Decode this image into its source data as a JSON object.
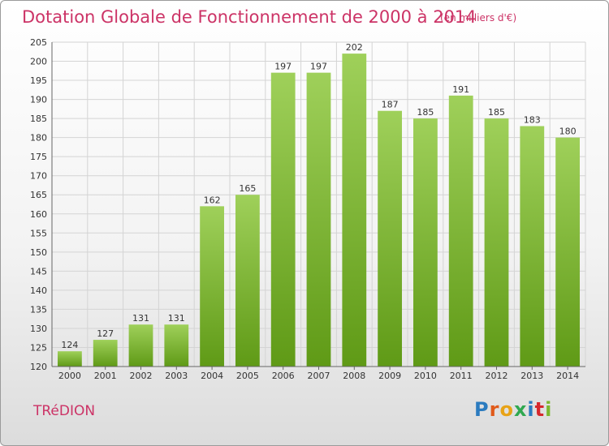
{
  "title": "Dotation Globale de Fonctionnement de 2000 à 2014",
  "subtitle": "(en milliers d'€)",
  "commune": "TRéDION",
  "logo": {
    "letters": [
      "P",
      "r",
      "o",
      "x",
      "i",
      "t",
      "i"
    ],
    "colors": [
      "#2b7bbf",
      "#e05a1a",
      "#e8a317",
      "#2fa84f",
      "#2b7bbf",
      "#d6282d",
      "#7cb82f"
    ]
  },
  "chart_data": {
    "type": "bar",
    "categories": [
      "2000",
      "2001",
      "2002",
      "2003",
      "2004",
      "2005",
      "2006",
      "2007",
      "2008",
      "2009",
      "2010",
      "2011",
      "2012",
      "2013",
      "2014"
    ],
    "values": [
      124,
      127,
      131,
      131,
      162,
      165,
      197,
      197,
      202,
      187,
      185,
      191,
      185,
      183,
      180
    ],
    "ylim": [
      120,
      205
    ],
    "yticks": [
      120,
      125,
      130,
      135,
      140,
      145,
      150,
      155,
      160,
      165,
      170,
      175,
      180,
      185,
      190,
      195,
      200,
      205
    ],
    "bar_color_top": "#9fd05a",
    "bar_color_bottom": "#5f9a16",
    "grid": true
  }
}
